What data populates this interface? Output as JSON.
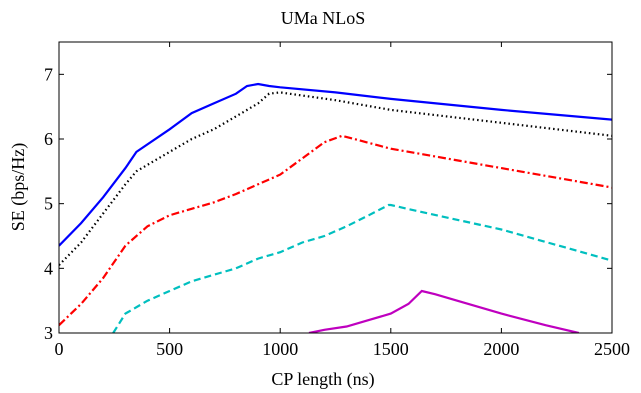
{
  "chart_data": {
    "type": "line",
    "title": "UMa NLoS",
    "xlabel": "CP length (ns)",
    "ylabel": "SE (bps/Hz)",
    "xlim": [
      0,
      2500
    ],
    "ylim": [
      3,
      7.5
    ],
    "xticks": [
      0,
      500,
      1000,
      1500,
      2000,
      2500
    ],
    "yticks": [
      3,
      4,
      5,
      6,
      7
    ],
    "grid": false,
    "legend": "none",
    "series": [
      {
        "color": "#0000ff",
        "dash": "solid",
        "x": [
          0,
          100,
          200,
          300,
          350,
          500,
          600,
          700,
          800,
          850,
          900,
          950,
          1000,
          1250,
          1500,
          2000,
          2500
        ],
        "y": [
          4.35,
          4.7,
          5.1,
          5.55,
          5.8,
          6.15,
          6.4,
          6.55,
          6.7,
          6.82,
          6.85,
          6.82,
          6.8,
          6.72,
          6.62,
          6.45,
          6.3
        ]
      },
      {
        "color": "#000000",
        "dash": "dotted",
        "x": [
          0,
          100,
          200,
          300,
          350,
          500,
          600,
          700,
          800,
          900,
          950,
          1000,
          1250,
          1500,
          2000,
          2500
        ],
        "y": [
          4.05,
          4.4,
          4.85,
          5.3,
          5.5,
          5.8,
          6.0,
          6.15,
          6.35,
          6.55,
          6.7,
          6.72,
          6.6,
          6.45,
          6.25,
          6.05
        ]
      },
      {
        "color": "#ff0000",
        "dash": "dashdot",
        "x": [
          0,
          100,
          200,
          300,
          400,
          500,
          600,
          700,
          800,
          900,
          1000,
          1100,
          1200,
          1280,
          1500,
          2000,
          2500
        ],
        "y": [
          3.12,
          3.45,
          3.85,
          4.35,
          4.65,
          4.82,
          4.92,
          5.02,
          5.15,
          5.3,
          5.45,
          5.7,
          5.95,
          6.05,
          5.85,
          5.55,
          5.25
        ]
      },
      {
        "color": "#00bfbf",
        "dash": "dashed",
        "x": [
          245,
          300,
          400,
          500,
          600,
          700,
          800,
          900,
          1000,
          1100,
          1200,
          1300,
          1400,
          1490,
          1500,
          1600,
          2000,
          2500
        ],
        "y": [
          3.0,
          3.3,
          3.5,
          3.65,
          3.8,
          3.9,
          4.0,
          4.15,
          4.25,
          4.4,
          4.5,
          4.65,
          4.82,
          4.98,
          4.98,
          4.9,
          4.6,
          4.12
        ]
      },
      {
        "color": "#bf00bf",
        "dash": "solid",
        "x": [
          1130,
          1200,
          1300,
          1400,
          1500,
          1580,
          1640,
          1700,
          1800,
          2000,
          2200,
          2350
        ],
        "y": [
          3.0,
          3.05,
          3.1,
          3.2,
          3.3,
          3.45,
          3.65,
          3.6,
          3.5,
          3.3,
          3.12,
          3.0
        ]
      }
    ]
  }
}
